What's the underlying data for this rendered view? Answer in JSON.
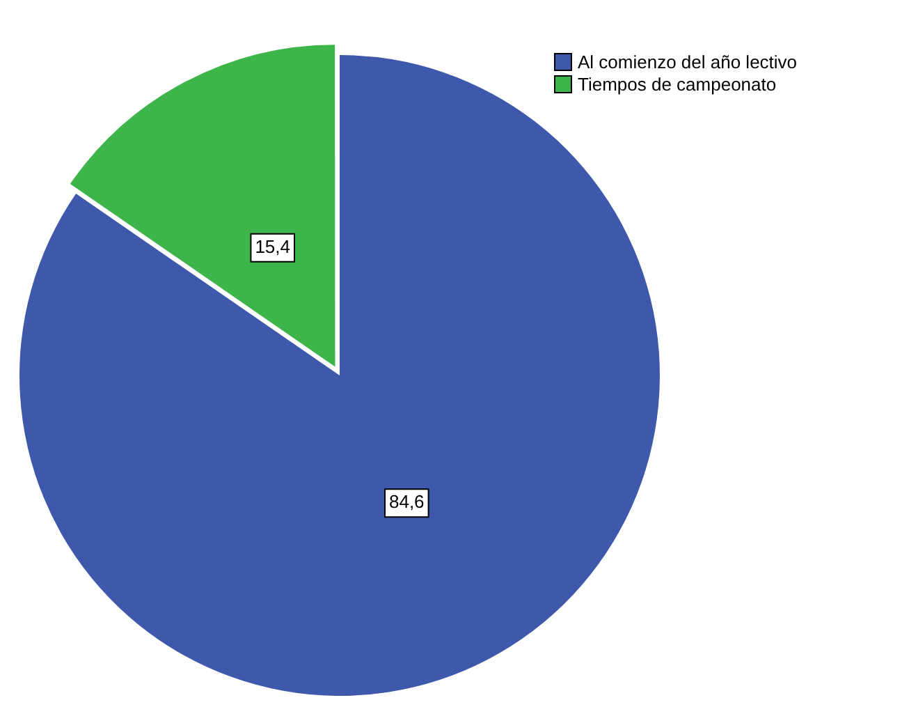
{
  "chart_data": {
    "type": "pie",
    "categories": [
      "Al comienzo del año lectivo",
      "Tiempos de campeonato"
    ],
    "values": [
      84.6,
      15.4
    ],
    "colors": [
      "#3e58ac",
      "#3db54a"
    ],
    "value_labels": [
      "84,6",
      "15,4"
    ],
    "legend": "top right"
  }
}
